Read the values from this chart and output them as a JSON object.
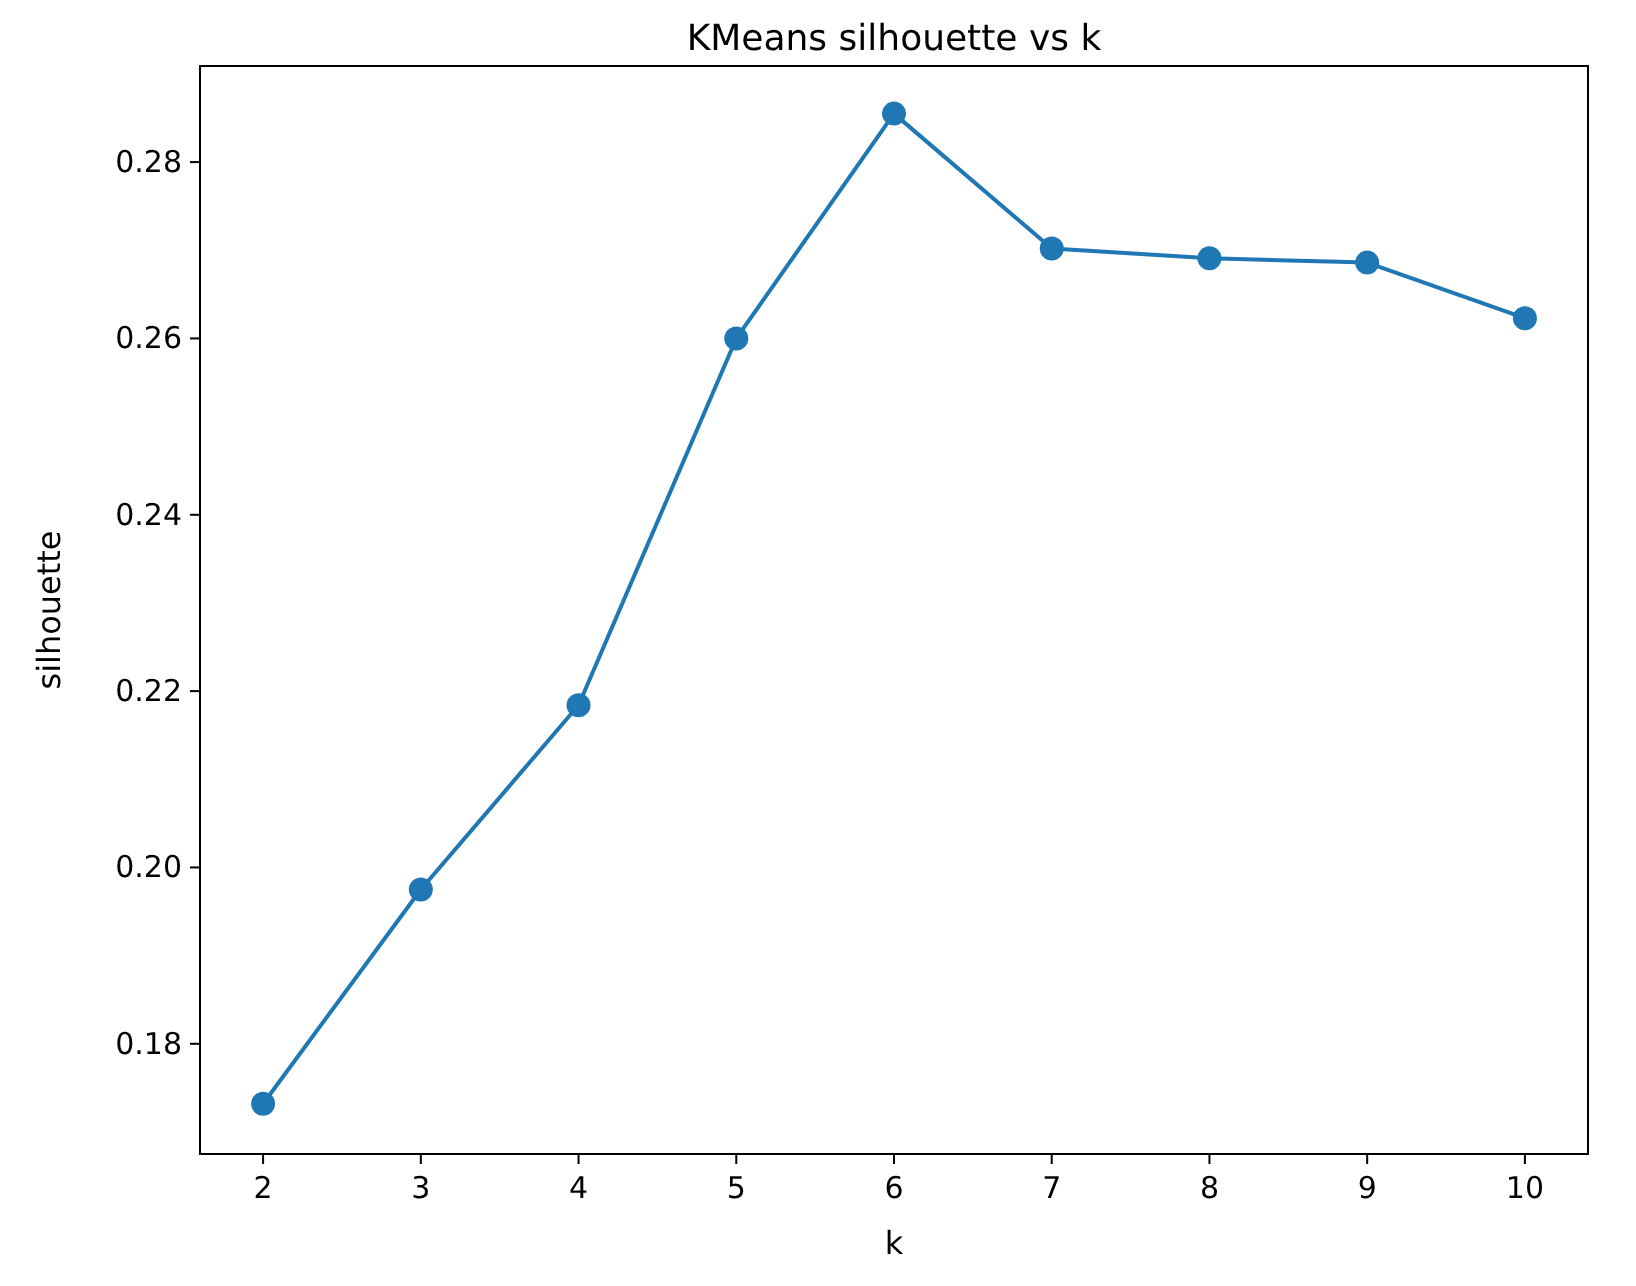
{
  "chart_data": {
    "type": "line",
    "title": "KMeans silhouette vs k",
    "xlabel": "k",
    "ylabel": "silhouette",
    "x": [
      2,
      3,
      4,
      5,
      6,
      7,
      8,
      9,
      10
    ],
    "series": [
      {
        "color": "#1f77b4",
        "values": [
          0.1732,
          0.1975,
          0.2184,
          0.26,
          0.2855,
          0.2702,
          0.2691,
          0.2686,
          0.2623
        ]
      }
    ],
    "xlim": [
      1.6,
      10.4
    ],
    "xticks": [
      2,
      3,
      4,
      5,
      6,
      7,
      8,
      9,
      10
    ],
    "ylim": [
      0.1675,
      0.2909
    ],
    "yticks": [
      {
        "value": 0.18,
        "label": "0.18"
      },
      {
        "value": 0.2,
        "label": "0.20"
      },
      {
        "value": 0.22,
        "label": "0.22"
      },
      {
        "value": 0.24,
        "label": "0.24"
      },
      {
        "value": 0.26,
        "label": "0.26"
      },
      {
        "value": 0.28,
        "label": "0.28"
      }
    ],
    "grid": false,
    "marker": "circle",
    "line_style": "solid"
  }
}
